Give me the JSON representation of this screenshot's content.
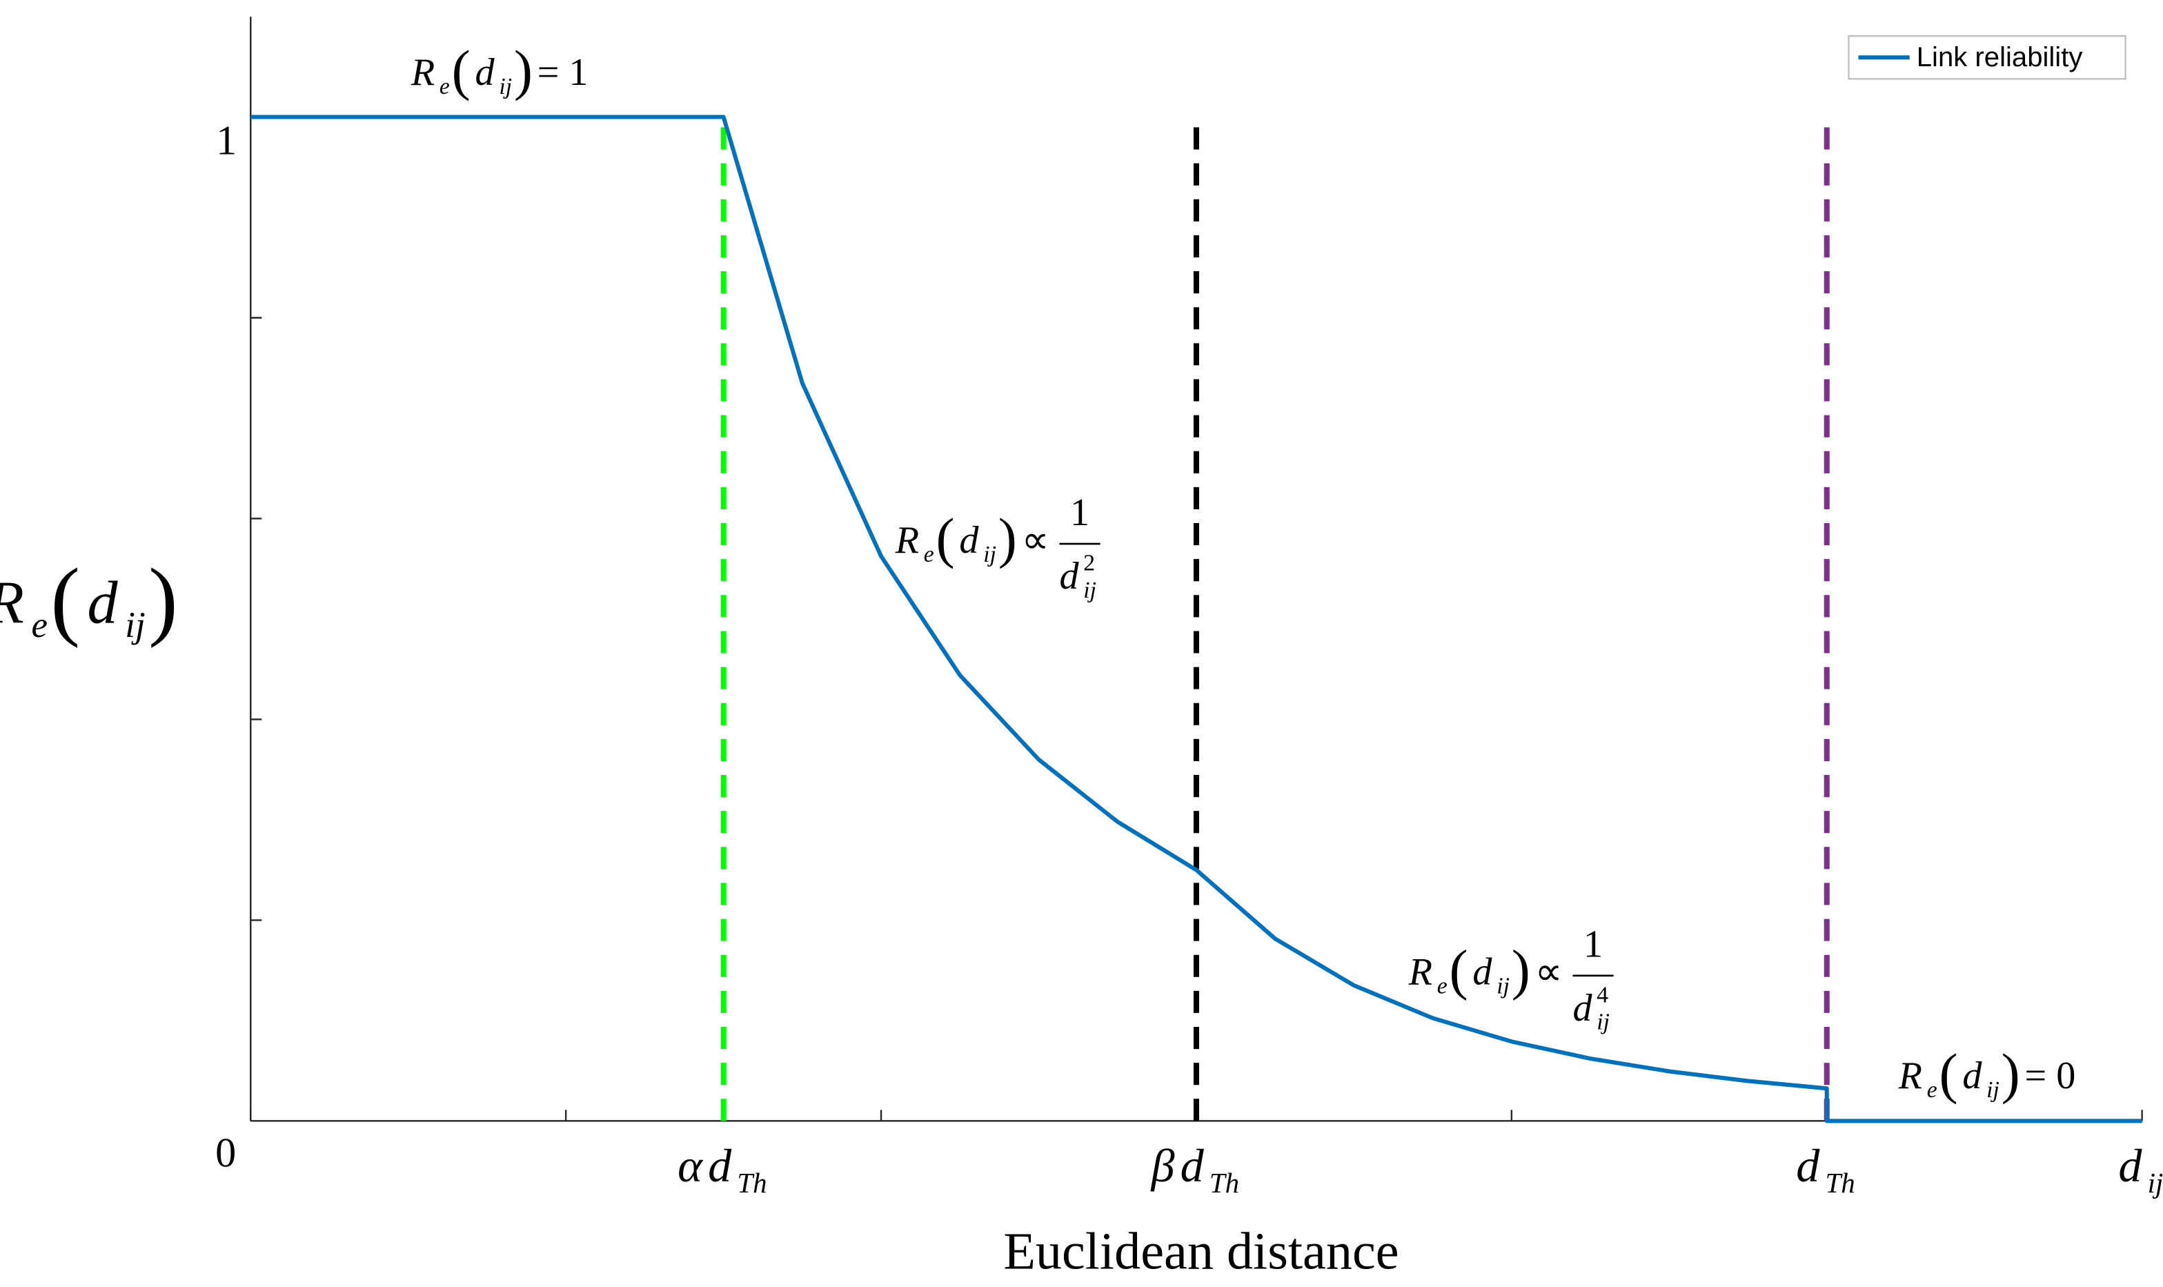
{
  "chart_data": {
    "type": "line",
    "xlabel": "Euclidean distance",
    "ylabel": [
      "R",
      {
        "sub": "e"
      },
      "(",
      "d",
      {
        "sub": "ij"
      },
      ")"
    ],
    "xlim": [
      0,
      6
    ],
    "ylim": [
      0,
      1.1
    ],
    "xticks": [
      0,
      {
        "value": 1,
        "label": null
      },
      {
        "value": 1.5,
        "label": [
          "α",
          "d",
          {
            "sub": "Th"
          }
        ]
      },
      {
        "value": 2,
        "label": null
      },
      {
        "value": 3,
        "label": [
          "β",
          "d",
          {
            "sub": "Th"
          }
        ]
      },
      {
        "value": 4,
        "label": null
      },
      {
        "value": 5,
        "label": [
          "d",
          {
            "sub": "Th"
          }
        ]
      },
      {
        "value": 6,
        "label": [
          "d",
          {
            "sub": "ij"
          }
        ]
      }
    ],
    "yticks": [
      {
        "value": 0.2,
        "label": null
      },
      {
        "value": 0.4,
        "label": null
      },
      {
        "value": 0.6,
        "label": null
      },
      {
        "value": 0.8,
        "label": null
      },
      1
    ],
    "legend": "northeast",
    "series": [
      {
        "name": "Link reliability",
        "color": "#0072bd",
        "x": [
          0,
          1.5,
          1.75,
          2,
          2.25,
          2.5,
          2.75,
          3,
          3.25,
          3.5,
          3.75,
          4,
          4.25,
          4.5,
          4.75,
          5,
          5,
          6
        ],
        "values": [
          1,
          1,
          0.735,
          0.5625,
          0.444,
          0.36,
          0.298,
          0.25,
          0.1815,
          0.135,
          0.1024,
          0.0791,
          0.0621,
          0.0494,
          0.0398,
          0.0324,
          0,
          0
        ]
      }
    ],
    "vlines": [
      {
        "x": 1.5,
        "y": [
          0,
          1
        ],
        "color": "#00ff00"
      },
      {
        "x": 3,
        "y": [
          0,
          1
        ],
        "color": "#000000"
      },
      {
        "x": 5,
        "y": [
          0,
          1
        ],
        "color": "#7e2f8e"
      }
    ],
    "annotations": [
      {
        "text": [
          "R",
          {
            "sub": "e"
          },
          "(",
          "d",
          {
            "sub": "ij"
          },
          ")",
          "= 1"
        ]
      },
      {
        "text": [
          "R",
          {
            "sub": "e"
          },
          "(",
          "d",
          {
            "sub": "ij"
          },
          ")",
          "∝"
        ],
        "numerator": "1",
        "denominator": [
          "d",
          {
            "sub": "ij"
          },
          {
            "sup": "2"
          }
        ]
      },
      {
        "text": [
          "R",
          {
            "sub": "e"
          },
          "(",
          "d",
          {
            "sub": "ij"
          },
          ")",
          "∝"
        ],
        "numerator": "1",
        "denominator": [
          "d",
          {
            "sub": "ij"
          },
          {
            "sup": "4"
          }
        ]
      },
      {
        "text": [
          "R",
          {
            "sub": "e"
          },
          "(",
          "d",
          {
            "sub": "ij"
          },
          ")",
          "= 0"
        ]
      }
    ]
  }
}
